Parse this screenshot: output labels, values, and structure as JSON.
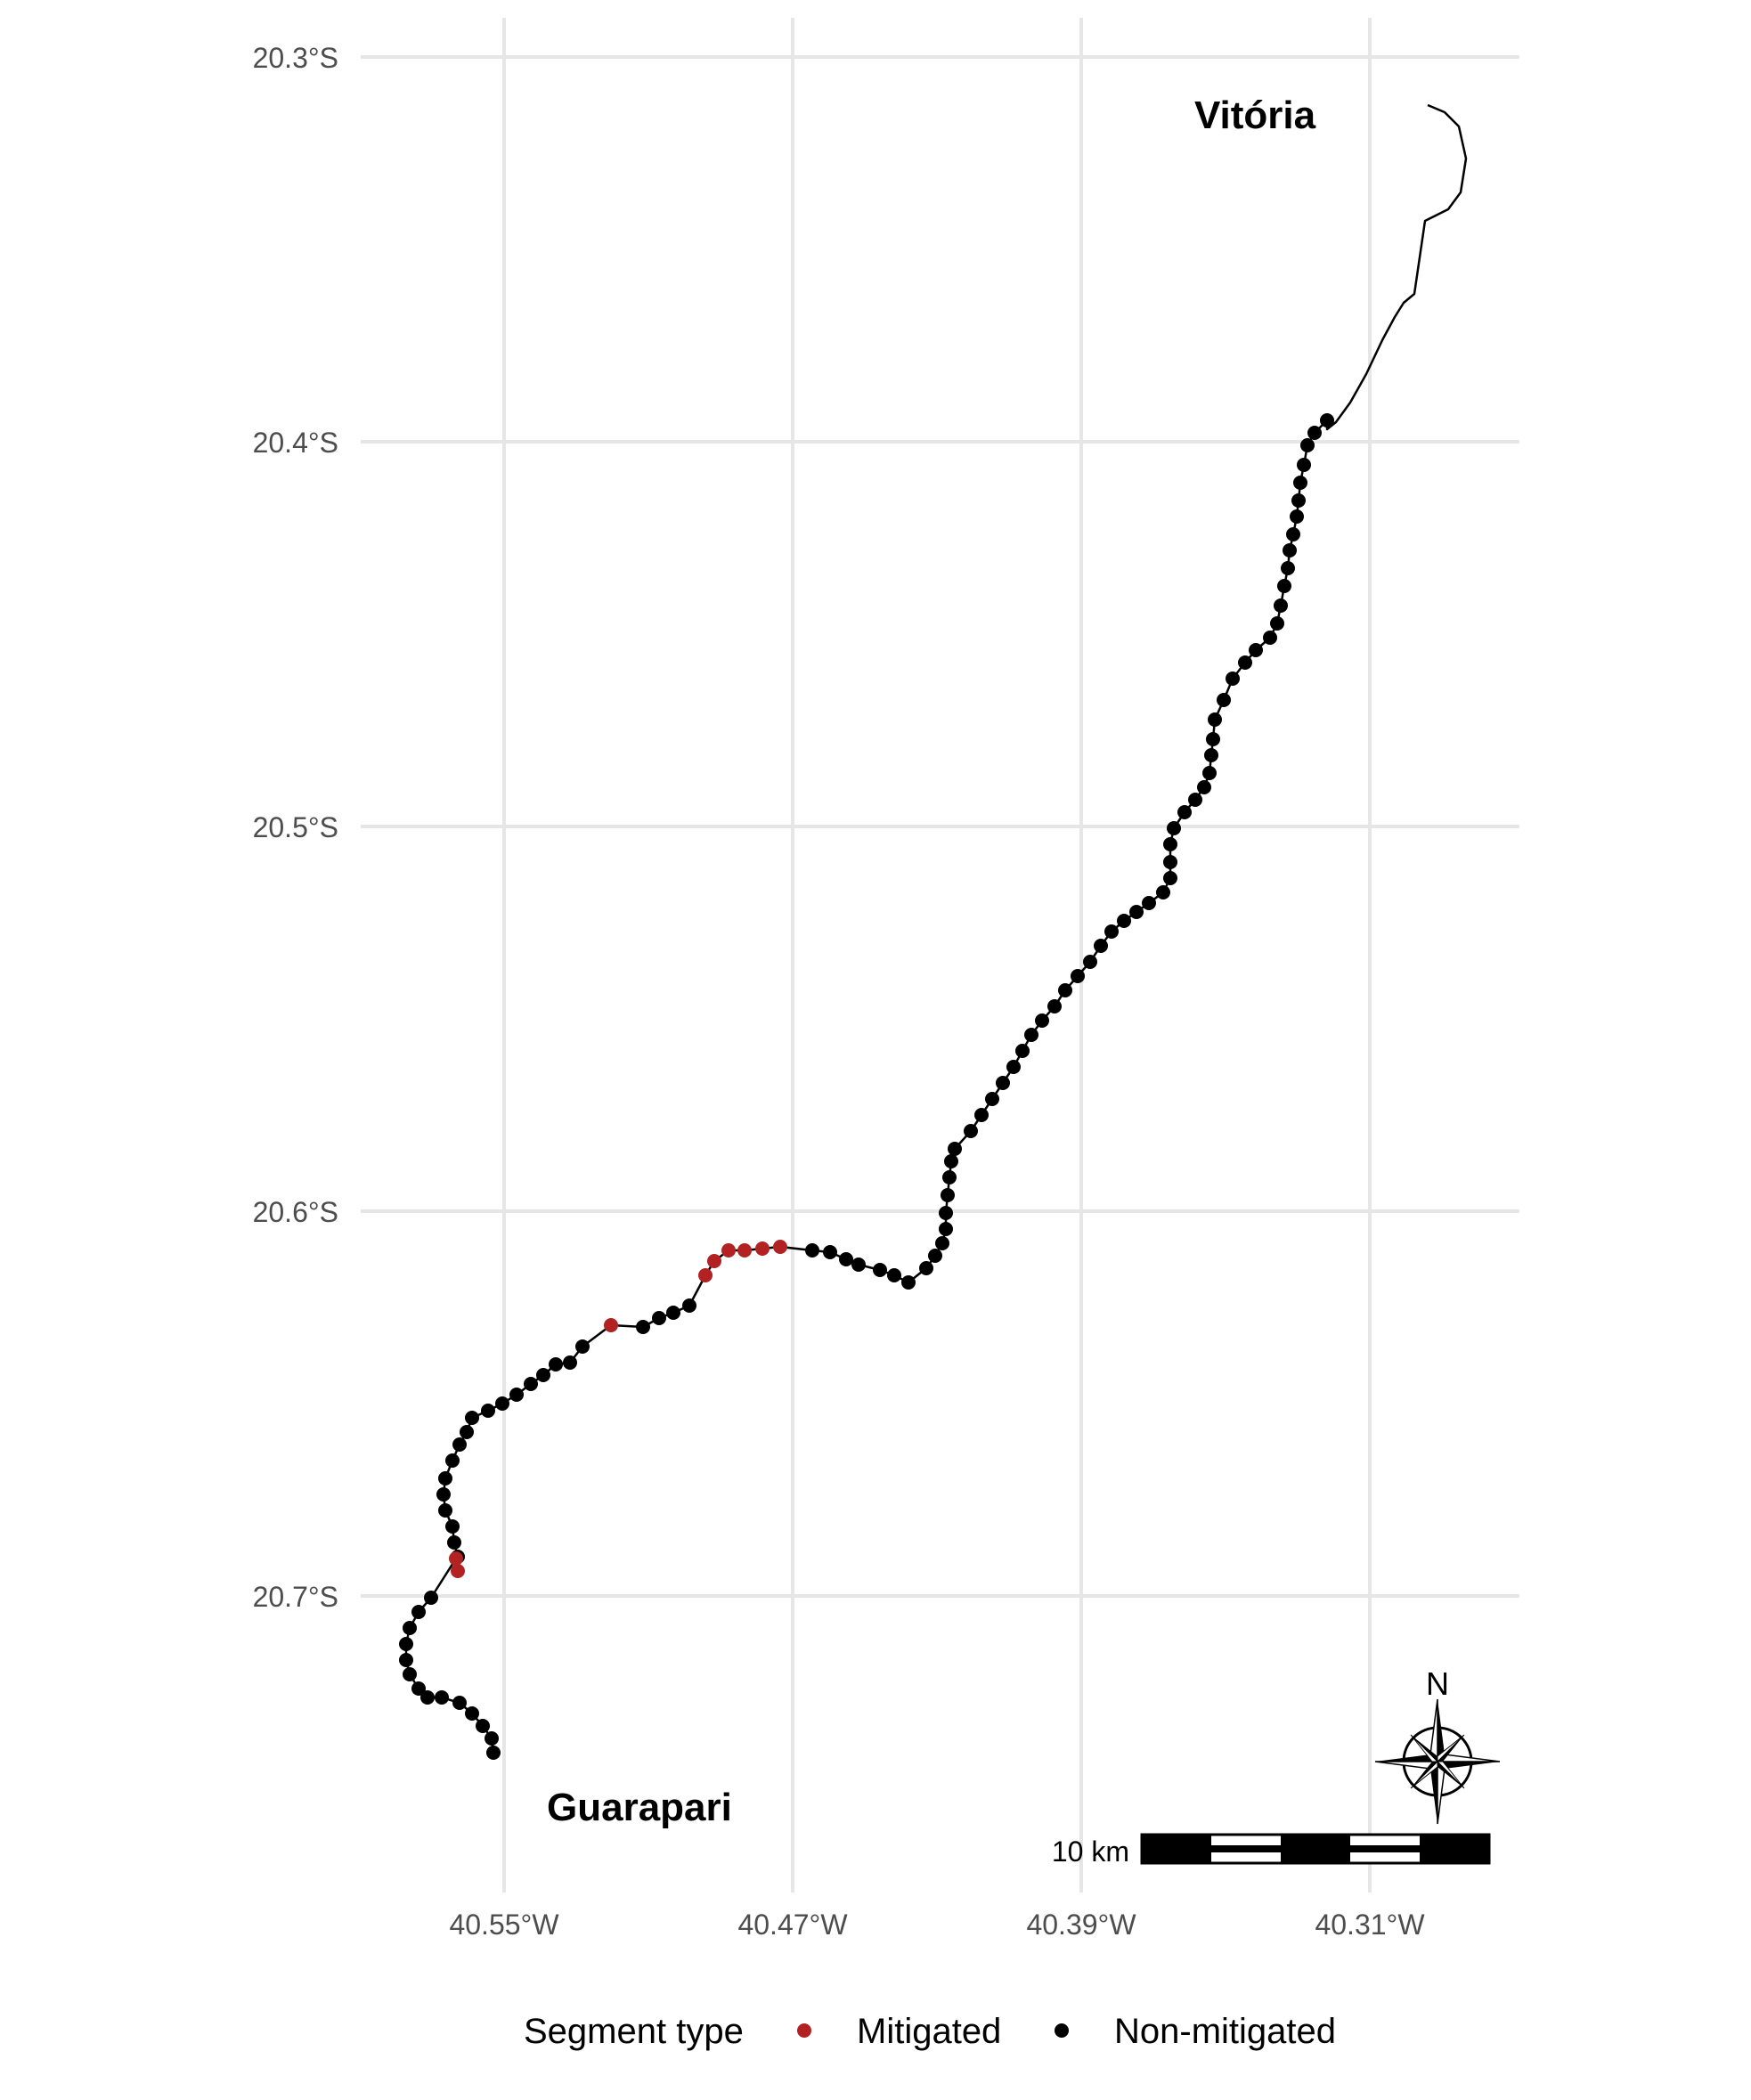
{
  "map": {
    "cities": {
      "north": "Vitória",
      "south": "Guarapari"
    },
    "x_axis": {
      "ticks": [
        "40.55°W",
        "40.47°W",
        "40.39°W",
        "40.31°W"
      ]
    },
    "y_axis": {
      "ticks": [
        "20.3°S",
        "20.4°S",
        "20.5°S",
        "20.6°S",
        "20.7°S"
      ]
    },
    "scale_bar": {
      "label": "10 km"
    },
    "north_arrow": {
      "label": "N",
      "icon": "compass-rose-icon"
    },
    "legend": {
      "title": "Segment type",
      "items": [
        {
          "label": "Mitigated",
          "color": "#b22222"
        },
        {
          "label": "Non-mitigated",
          "color": "#000000"
        }
      ]
    },
    "colors": {
      "mitigated": "#b22222",
      "non_mitigated": "#000000",
      "grid": "#e6e6e6"
    }
  }
}
